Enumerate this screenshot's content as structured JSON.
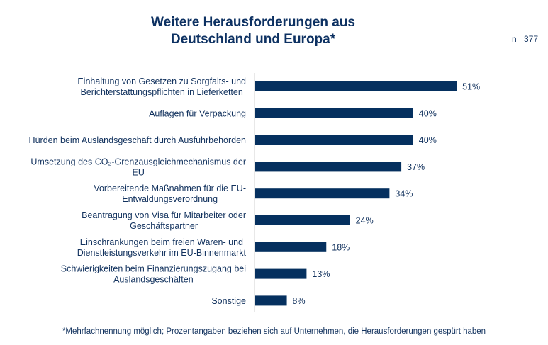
{
  "chart_data": {
    "type": "bar",
    "orientation": "horizontal",
    "title": "Weitere Herausforderungen aus Deutschland und Europa*",
    "title_lines": [
      "Weitere Herausforderungen aus",
      "Deutschland und Europa*"
    ],
    "sample_size": "n= 377",
    "footnote": "*Mehrfachnennung möglich; Prozentangaben beziehen sich auf Unternehmen, die Herausforderungen gespürt haben",
    "categories": [
      [
        "Einhaltung von Gesetzen zu Sorgfalts- und",
        "Berichterstattungspflichten in Lieferketten"
      ],
      [
        "Auflagen für Verpackung"
      ],
      [
        "Hürden beim Auslandsgeschäft durch Ausfuhrbehörden"
      ],
      [
        "Umsetzung des CO₂-Grenzausgleichmechanismus der",
        "EU"
      ],
      [
        "Vorbereitende Maßnahmen für die EU-",
        "Entwaldungsverordnung"
      ],
      [
        "Beantragung von Visa für Mitarbeiter oder",
        "Geschäftspartner"
      ],
      [
        "Einschränkungen beim freien Waren- und",
        "Dienstleistungsverkehr im EU-Binnenmarkt"
      ],
      [
        "Schwierigkeiten beim Finanzierungszugang bei",
        "Auslandsgeschäften"
      ],
      [
        "Sonstige"
      ]
    ],
    "values": [
      51,
      40,
      40,
      37,
      34,
      24,
      18,
      13,
      8
    ],
    "data_labels": [
      "51%",
      "40%",
      "40%",
      "37%",
      "34%",
      "24%",
      "18%",
      "13%",
      "8%"
    ],
    "unit": "%",
    "grid": false,
    "colors": {
      "bar": "#05305f",
      "text": "#12325e",
      "axis": "#d0d0d0"
    }
  }
}
